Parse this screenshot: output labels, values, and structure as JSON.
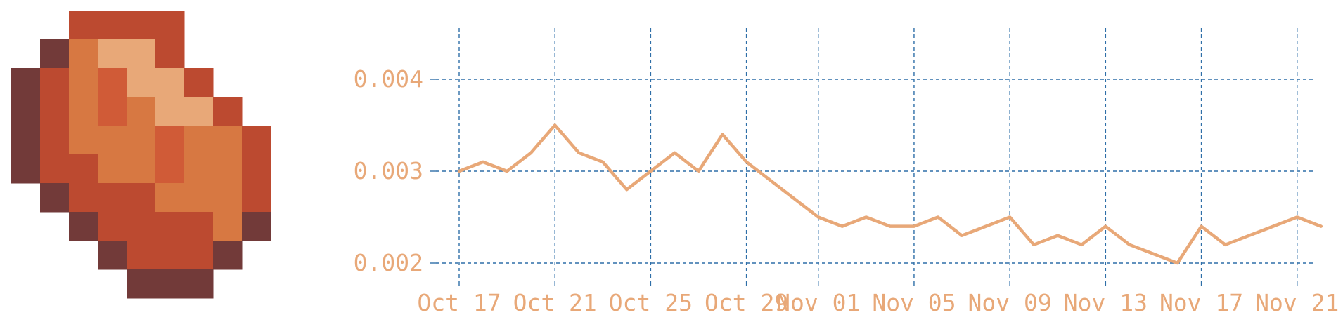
{
  "logo": {
    "icon": "pixel-art-copper-ore-icon",
    "palette": {
      "dark": "#723a39",
      "red": "#bc4a30",
      "orange": "#d77842",
      "mid": "#d05b37",
      "light": "#e8a878"
    }
  },
  "chart_data": {
    "type": "line",
    "title": "",
    "xlabel": "",
    "ylabel": "",
    "x_ticks": [
      "Oct 17",
      "Oct 21",
      "Oct 25",
      "Oct 29",
      "Nov 01",
      "Nov 05",
      "Nov 09",
      "Nov 13",
      "Nov 17",
      "Nov 21"
    ],
    "y_ticks": [
      "0.002",
      "0.003",
      "0.004"
    ],
    "x_range": [
      "Oct 17",
      "Nov 24"
    ],
    "ylim": [
      0.0018,
      0.0046
    ],
    "grid": true,
    "colors": {
      "line": "#e8a878",
      "grid": "#2f6fa8",
      "text": "#e8a878"
    },
    "series": [
      {
        "x": [
          "Oct 17",
          "Oct 18",
          "Oct 19",
          "Oct 20",
          "Oct 21",
          "Oct 22",
          "Oct 23",
          "Oct 24",
          "Oct 25",
          "Oct 26",
          "Oct 27",
          "Oct 28",
          "Oct 29",
          "Oct 30",
          "Oct 31",
          "Nov 01",
          "Nov 02",
          "Nov 03",
          "Nov 04",
          "Nov 05",
          "Nov 06",
          "Nov 07",
          "Nov 08",
          "Nov 09",
          "Nov 10",
          "Nov 11",
          "Nov 12",
          "Nov 13",
          "Nov 14",
          "Nov 15",
          "Nov 16",
          "Nov 17",
          "Nov 18",
          "Nov 19",
          "Nov 20",
          "Nov 21",
          "Nov 22"
        ],
        "values": [
          0.003,
          0.0031,
          0.003,
          0.0032,
          0.0035,
          0.0032,
          0.0031,
          0.0028,
          0.003,
          0.0032,
          0.003,
          0.0034,
          0.0031,
          0.0029,
          0.0027,
          0.0025,
          0.0024,
          0.0025,
          0.0024,
          0.0024,
          0.0025,
          0.0023,
          0.0024,
          0.0025,
          0.0022,
          0.0023,
          0.0022,
          0.0024,
          0.0022,
          0.0021,
          0.002,
          0.0024,
          0.0022,
          0.0023,
          0.0024,
          0.0025,
          0.0024
        ]
      }
    ]
  }
}
